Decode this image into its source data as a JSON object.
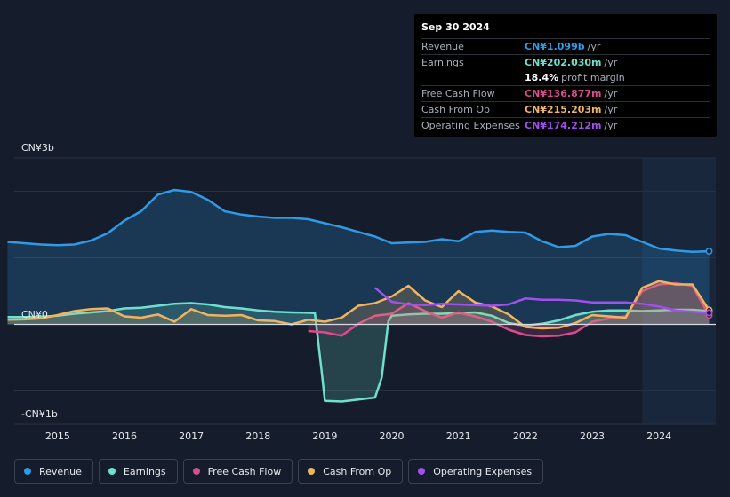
{
  "tooltip": {
    "date": "Sep 30 2024",
    "rows": [
      {
        "label": "Revenue",
        "value": "CN¥1.099b",
        "unit": "/yr",
        "color": "#2f9ae6"
      },
      {
        "label": "Earnings",
        "value": "CN¥202.030m",
        "unit": "/yr",
        "color": "#6fe0cc"
      },
      {
        "label": "",
        "value": "18.4%",
        "unit": "profit margin",
        "color": "#ffffff"
      },
      {
        "label": "Free Cash Flow",
        "value": "CN¥136.877m",
        "unit": "/yr",
        "color": "#d94c8e"
      },
      {
        "label": "Cash From Op",
        "value": "CN¥215.203m",
        "unit": "/yr",
        "color": "#f0b45f"
      },
      {
        "label": "Operating Expenses",
        "value": "CN¥174.212m",
        "unit": "/yr",
        "color": "#a24ff0"
      }
    ]
  },
  "chart_data": {
    "type": "line",
    "title": "",
    "xlabel": "",
    "ylabel": "",
    "y_axis_labels": {
      "top": "CN¥3b",
      "zero": "CN¥0",
      "bottom": "-CN¥1b"
    },
    "ylim": [
      -1500,
      2500
    ],
    "xlim": [
      2014.35,
      2024.85
    ],
    "x_ticks": [
      {
        "label": "2015",
        "x": 2015.0
      },
      {
        "label": "2016",
        "x": 2016.0
      },
      {
        "label": "2017",
        "x": 2017.0
      },
      {
        "label": "2018",
        "x": 2018.0
      },
      {
        "label": "2019",
        "x": 2019.0
      },
      {
        "label": "2020",
        "x": 2020.0
      },
      {
        "label": "2021",
        "x": 2021.0
      },
      {
        "label": "2022",
        "x": 2022.0
      },
      {
        "label": "2023",
        "x": 2023.0
      },
      {
        "label": "2024",
        "x": 2024.0
      }
    ],
    "gridlines": [
      -1000,
      0,
      1000,
      2000
    ],
    "highlight_start": 2023.75,
    "series": [
      {
        "name": "Revenue",
        "color": "#2f9ae6",
        "fill": true,
        "points": [
          [
            2014.25,
            1240
          ],
          [
            2014.5,
            1220
          ],
          [
            2014.75,
            1200
          ],
          [
            2015.0,
            1190
          ],
          [
            2015.25,
            1200
          ],
          [
            2015.5,
            1260
          ],
          [
            2015.75,
            1370
          ],
          [
            2016.0,
            1560
          ],
          [
            2016.25,
            1700
          ],
          [
            2016.5,
            1950
          ],
          [
            2016.75,
            2020
          ],
          [
            2017.0,
            1990
          ],
          [
            2017.25,
            1870
          ],
          [
            2017.5,
            1700
          ],
          [
            2017.75,
            1650
          ],
          [
            2018.0,
            1620
          ],
          [
            2018.25,
            1600
          ],
          [
            2018.5,
            1600
          ],
          [
            2018.75,
            1580
          ],
          [
            2019.0,
            1520
          ],
          [
            2019.25,
            1460
          ],
          [
            2019.5,
            1390
          ],
          [
            2019.75,
            1320
          ],
          [
            2020.0,
            1220
          ],
          [
            2020.25,
            1230
          ],
          [
            2020.5,
            1240
          ],
          [
            2020.75,
            1280
          ],
          [
            2021.0,
            1250
          ],
          [
            2021.25,
            1390
          ],
          [
            2021.5,
            1410
          ],
          [
            2021.75,
            1390
          ],
          [
            2022.0,
            1380
          ],
          [
            2022.25,
            1250
          ],
          [
            2022.5,
            1160
          ],
          [
            2022.75,
            1180
          ],
          [
            2023.0,
            1320
          ],
          [
            2023.25,
            1360
          ],
          [
            2023.5,
            1340
          ],
          [
            2023.75,
            1240
          ],
          [
            2024.0,
            1140
          ],
          [
            2024.25,
            1110
          ],
          [
            2024.5,
            1090
          ],
          [
            2024.75,
            1099
          ]
        ]
      },
      {
        "name": "Earnings",
        "color": "#6fe0cc",
        "fill": true,
        "points": [
          [
            2014.25,
            110
          ],
          [
            2014.5,
            110
          ],
          [
            2014.75,
            115
          ],
          [
            2015.0,
            130
          ],
          [
            2015.25,
            160
          ],
          [
            2015.5,
            180
          ],
          [
            2015.75,
            200
          ],
          [
            2016.0,
            240
          ],
          [
            2016.25,
            250
          ],
          [
            2016.5,
            280
          ],
          [
            2016.75,
            310
          ],
          [
            2017.0,
            320
          ],
          [
            2017.25,
            300
          ],
          [
            2017.5,
            260
          ],
          [
            2017.75,
            240
          ],
          [
            2018.0,
            210
          ],
          [
            2018.25,
            190
          ],
          [
            2018.5,
            180
          ],
          [
            2018.75,
            175
          ],
          [
            2018.85,
            170
          ],
          [
            2018.95,
            -700
          ],
          [
            2019.0,
            -1150
          ],
          [
            2019.25,
            -1160
          ],
          [
            2019.5,
            -1130
          ],
          [
            2019.75,
            -1100
          ],
          [
            2019.85,
            -800
          ],
          [
            2019.95,
            50
          ],
          [
            2020.0,
            130
          ],
          [
            2020.25,
            150
          ],
          [
            2020.5,
            160
          ],
          [
            2020.75,
            160
          ],
          [
            2021.0,
            170
          ],
          [
            2021.25,
            180
          ],
          [
            2021.5,
            130
          ],
          [
            2021.75,
            20
          ],
          [
            2022.0,
            -20
          ],
          [
            2022.25,
            10
          ],
          [
            2022.5,
            60
          ],
          [
            2022.75,
            140
          ],
          [
            2023.0,
            190
          ],
          [
            2023.25,
            210
          ],
          [
            2023.5,
            210
          ],
          [
            2023.75,
            200
          ],
          [
            2024.0,
            210
          ],
          [
            2024.25,
            220
          ],
          [
            2024.5,
            220
          ],
          [
            2024.75,
            202
          ]
        ]
      },
      {
        "name": "Free Cash Flow",
        "color": "#d94c8e",
        "fill": true,
        "points": [
          [
            2018.75,
            -100
          ],
          [
            2019.0,
            -120
          ],
          [
            2019.25,
            -170
          ],
          [
            2019.5,
            10
          ],
          [
            2019.75,
            130
          ],
          [
            2020.0,
            160
          ],
          [
            2020.25,
            320
          ],
          [
            2020.5,
            200
          ],
          [
            2020.75,
            100
          ],
          [
            2021.0,
            180
          ],
          [
            2021.25,
            120
          ],
          [
            2021.5,
            40
          ],
          [
            2021.75,
            -80
          ],
          [
            2022.0,
            -160
          ],
          [
            2022.25,
            -180
          ],
          [
            2022.5,
            -170
          ],
          [
            2022.75,
            -120
          ],
          [
            2023.0,
            40
          ],
          [
            2023.25,
            90
          ],
          [
            2023.5,
            120
          ],
          [
            2023.75,
            500
          ],
          [
            2024.0,
            600
          ],
          [
            2024.25,
            620
          ],
          [
            2024.5,
            580
          ],
          [
            2024.75,
            137
          ]
        ]
      },
      {
        "name": "Cash From Op",
        "color": "#f0b45f",
        "fill": true,
        "points": [
          [
            2014.25,
            70
          ],
          [
            2014.5,
            75
          ],
          [
            2014.75,
            90
          ],
          [
            2015.0,
            140
          ],
          [
            2015.25,
            200
          ],
          [
            2015.5,
            230
          ],
          [
            2015.75,
            240
          ],
          [
            2016.0,
            120
          ],
          [
            2016.25,
            100
          ],
          [
            2016.5,
            150
          ],
          [
            2016.75,
            40
          ],
          [
            2017.0,
            230
          ],
          [
            2017.25,
            140
          ],
          [
            2017.5,
            130
          ],
          [
            2017.75,
            140
          ],
          [
            2018.0,
            60
          ],
          [
            2018.25,
            50
          ],
          [
            2018.5,
            0
          ],
          [
            2018.75,
            70
          ],
          [
            2019.0,
            40
          ],
          [
            2019.25,
            100
          ],
          [
            2019.5,
            280
          ],
          [
            2019.75,
            320
          ],
          [
            2020.0,
            420
          ],
          [
            2020.25,
            580
          ],
          [
            2020.5,
            360
          ],
          [
            2020.75,
            260
          ],
          [
            2021.0,
            500
          ],
          [
            2021.25,
            330
          ],
          [
            2021.5,
            270
          ],
          [
            2021.75,
            150
          ],
          [
            2022.0,
            -40
          ],
          [
            2022.25,
            -60
          ],
          [
            2022.5,
            -50
          ],
          [
            2022.75,
            20
          ],
          [
            2023.0,
            140
          ],
          [
            2023.25,
            120
          ],
          [
            2023.5,
            100
          ],
          [
            2023.75,
            550
          ],
          [
            2024.0,
            650
          ],
          [
            2024.25,
            600
          ],
          [
            2024.5,
            600
          ],
          [
            2024.75,
            215
          ]
        ]
      },
      {
        "name": "Operating Expenses",
        "color": "#a24ff0",
        "fill": false,
        "points": [
          [
            2019.75,
            550
          ],
          [
            2020.0,
            340
          ],
          [
            2020.25,
            300
          ],
          [
            2020.5,
            290
          ],
          [
            2020.75,
            310
          ],
          [
            2021.0,
            300
          ],
          [
            2021.25,
            290
          ],
          [
            2021.5,
            280
          ],
          [
            2021.75,
            300
          ],
          [
            2022.0,
            390
          ],
          [
            2022.25,
            370
          ],
          [
            2022.5,
            370
          ],
          [
            2022.75,
            360
          ],
          [
            2023.0,
            330
          ],
          [
            2023.25,
            330
          ],
          [
            2023.5,
            330
          ],
          [
            2023.75,
            310
          ],
          [
            2024.0,
            270
          ],
          [
            2024.25,
            210
          ],
          [
            2024.5,
            190
          ],
          [
            2024.75,
            174
          ]
        ]
      }
    ]
  },
  "legend": [
    {
      "label": "Revenue",
      "color": "#2f9ae6"
    },
    {
      "label": "Earnings",
      "color": "#6fe0cc"
    },
    {
      "label": "Free Cash Flow",
      "color": "#d94c8e"
    },
    {
      "label": "Cash From Op",
      "color": "#f0b45f"
    },
    {
      "label": "Operating Expenses",
      "color": "#a24ff0"
    }
  ]
}
